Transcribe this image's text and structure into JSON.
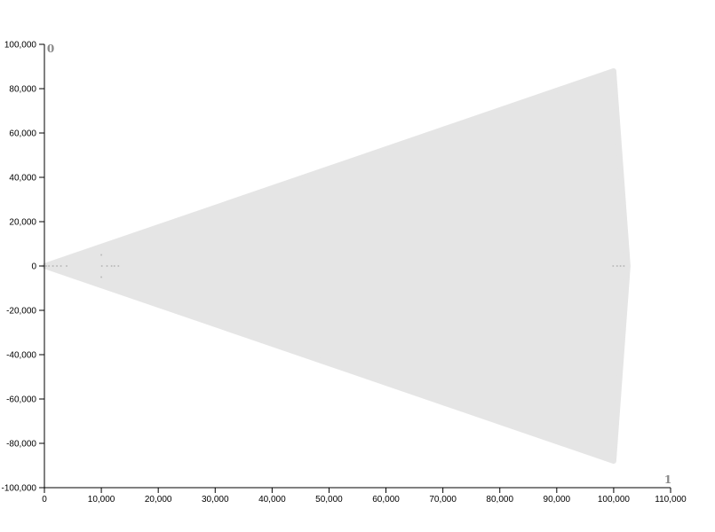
{
  "chart_data": {
    "type": "scatter",
    "title": "",
    "x_axis": {
      "label": "1",
      "min": 0,
      "max": 110000,
      "ticks": [
        0,
        10000,
        20000,
        30000,
        40000,
        50000,
        60000,
        70000,
        80000,
        90000,
        100000,
        110000
      ],
      "tick_labels": [
        "0",
        "10,000",
        "20,000",
        "30,000",
        "40,000",
        "50,000",
        "60,000",
        "70,000",
        "80,000",
        "90,000",
        "100,000",
        "110,000"
      ]
    },
    "y_axis": {
      "label": "0",
      "min": -100000,
      "max": 100000,
      "ticks": [
        100000,
        80000,
        60000,
        40000,
        20000,
        0,
        -20000,
        -40000,
        -60000,
        -80000,
        -100000
      ],
      "tick_labels": [
        "100,000",
        "80,000",
        "60,000",
        "40,000",
        "20,000",
        "0",
        "-20,000",
        "-40,000",
        "-60,000",
        "-80,000",
        "-100,000"
      ]
    },
    "grid": false,
    "hull_color": "#e5e5e5",
    "point_color": "#bbbbbb",
    "hull": [
      [
        0,
        0
      ],
      [
        100000,
        88000
      ],
      [
        102500,
        0
      ],
      [
        100000,
        -88000
      ]
    ],
    "points": [
      [
        300,
        0
      ],
      [
        800,
        0
      ],
      [
        1500,
        0
      ],
      [
        2200,
        0
      ],
      [
        2900,
        0
      ],
      [
        3900,
        0
      ],
      [
        10000,
        5000
      ],
      [
        10000,
        -5000
      ],
      [
        10100,
        0
      ],
      [
        11000,
        0
      ],
      [
        11800,
        0
      ],
      [
        12300,
        0
      ],
      [
        13000,
        0
      ],
      [
        99900,
        0
      ],
      [
        100600,
        0
      ],
      [
        101200,
        0
      ],
      [
        101800,
        0
      ]
    ]
  }
}
